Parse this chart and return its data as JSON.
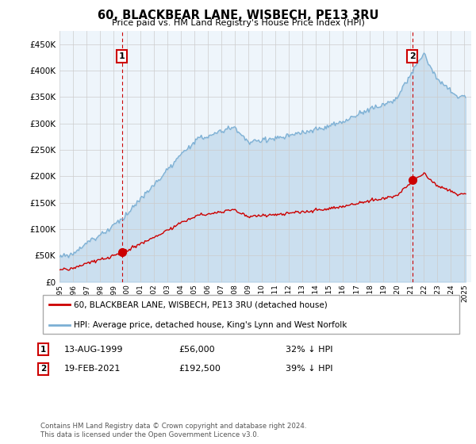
{
  "title": "60, BLACKBEAR LANE, WISBECH, PE13 3RU",
  "subtitle": "Price paid vs. HM Land Registry's House Price Index (HPI)",
  "hpi_label": "HPI: Average price, detached house, King's Lynn and West Norfolk",
  "property_label": "60, BLACKBEAR LANE, WISBECH, PE13 3RU (detached house)",
  "sale1_date": "13-AUG-1999",
  "sale1_price": 56000,
  "sale1_year": 1999.625,
  "sale1_hpi_text": "32% ↓ HPI",
  "sale2_date": "19-FEB-2021",
  "sale2_price": 192500,
  "sale2_year": 2021.125,
  "sale2_hpi_text": "39% ↓ HPI",
  "footer": "Contains HM Land Registry data © Crown copyright and database right 2024.\nThis data is licensed under the Open Government Licence v3.0.",
  "ylim": [
    0,
    475000
  ],
  "yticks": [
    0,
    50000,
    100000,
    150000,
    200000,
    250000,
    300000,
    350000,
    400000,
    450000
  ],
  "ytick_labels": [
    "£0",
    "£50K",
    "£100K",
    "£150K",
    "£200K",
    "£250K",
    "£300K",
    "£350K",
    "£400K",
    "£450K"
  ],
  "hpi_color": "#7bafd4",
  "hpi_fill_color": "#d6e8f5",
  "property_color": "#cc0000",
  "vline_color": "#cc0000",
  "background_color": "#ffffff",
  "chart_bg_color": "#eef5fb",
  "grid_color": "#cccccc",
  "xlim_start": 1995,
  "xlim_end": 2025.5
}
